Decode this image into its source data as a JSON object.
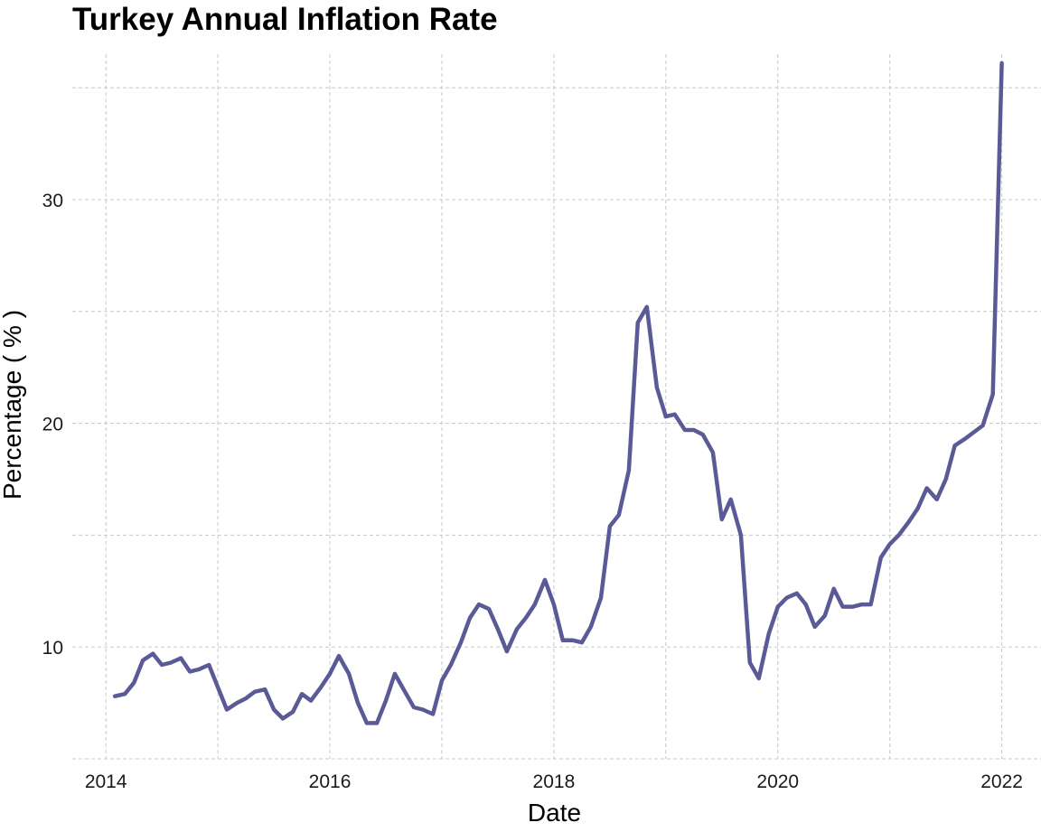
{
  "chart_data": {
    "type": "line",
    "title": "Turkey Annual Inflation Rate",
    "xlabel": "Date",
    "ylabel": "Percentage ( % )",
    "x_ticks": [
      "2014",
      "2016",
      "2018",
      "2020",
      "2022"
    ],
    "y_ticks": [
      "10",
      "20",
      "30"
    ],
    "xlim": [
      2013.7,
      2022.35
    ],
    "ylim": [
      5,
      36.5
    ],
    "grid": true,
    "legend": "none",
    "line_color": "#5a5a96",
    "x_unit": "year",
    "series": [
      {
        "x": [
          2014.08,
          2014.17,
          2014.25,
          2014.33,
          2014.42,
          2014.5,
          2014.58,
          2014.67,
          2014.75,
          2014.83,
          2014.92,
          2015.0,
          2015.08,
          2015.17,
          2015.25,
          2015.33,
          2015.42,
          2015.5,
          2015.58,
          2015.67,
          2015.75,
          2015.83,
          2015.92,
          2016.0,
          2016.08,
          2016.17,
          2016.25,
          2016.33,
          2016.42,
          2016.5,
          2016.58,
          2016.67,
          2016.75,
          2016.83,
          2016.92,
          2017.0,
          2017.08,
          2017.17,
          2017.25,
          2017.33,
          2017.42,
          2017.5,
          2017.58,
          2017.67,
          2017.75,
          2017.83,
          2017.92,
          2018.0,
          2018.08,
          2018.17,
          2018.25,
          2018.33,
          2018.42,
          2018.5,
          2018.58,
          2018.67,
          2018.75,
          2018.83,
          2018.92,
          2019.0,
          2019.08,
          2019.17,
          2019.25,
          2019.33,
          2019.42,
          2019.5,
          2019.58,
          2019.67,
          2019.75,
          2019.83,
          2019.92,
          2020.0,
          2020.08,
          2020.17,
          2020.25,
          2020.33,
          2020.42,
          2020.5,
          2020.58,
          2020.67,
          2020.75,
          2020.83,
          2020.92,
          2021.0,
          2021.08,
          2021.17,
          2021.25,
          2021.33,
          2021.42,
          2021.5,
          2021.58,
          2021.67,
          2021.75,
          2021.83,
          2021.92,
          2022.0
        ],
        "y": [
          7.8,
          7.9,
          8.4,
          9.4,
          9.7,
          9.2,
          9.3,
          9.5,
          8.9,
          9.0,
          9.2,
          8.2,
          7.2,
          7.5,
          7.7,
          8.0,
          8.1,
          7.2,
          6.8,
          7.1,
          7.9,
          7.6,
          8.2,
          8.8,
          9.6,
          8.8,
          7.5,
          6.6,
          6.6,
          7.6,
          8.8,
          8.0,
          7.3,
          7.2,
          7.0,
          8.5,
          9.2,
          10.2,
          11.3,
          11.9,
          11.7,
          10.8,
          9.8,
          10.8,
          11.3,
          11.9,
          13.0,
          11.9,
          10.3,
          10.3,
          10.2,
          10.9,
          12.2,
          15.4,
          15.9,
          17.9,
          24.5,
          25.2,
          21.6,
          20.3,
          20.4,
          19.7,
          19.7,
          19.5,
          18.7,
          15.7,
          16.6,
          15.0,
          9.3,
          8.6,
          10.6,
          11.8,
          12.2,
          12.4,
          11.9,
          10.9,
          11.4,
          12.6,
          11.8,
          11.8,
          11.9,
          11.9,
          14.0,
          14.6,
          15.0,
          15.6,
          16.2,
          17.1,
          16.6,
          17.5,
          19.0,
          19.3,
          19.6,
          19.9,
          21.3,
          36.1
        ]
      }
    ]
  }
}
